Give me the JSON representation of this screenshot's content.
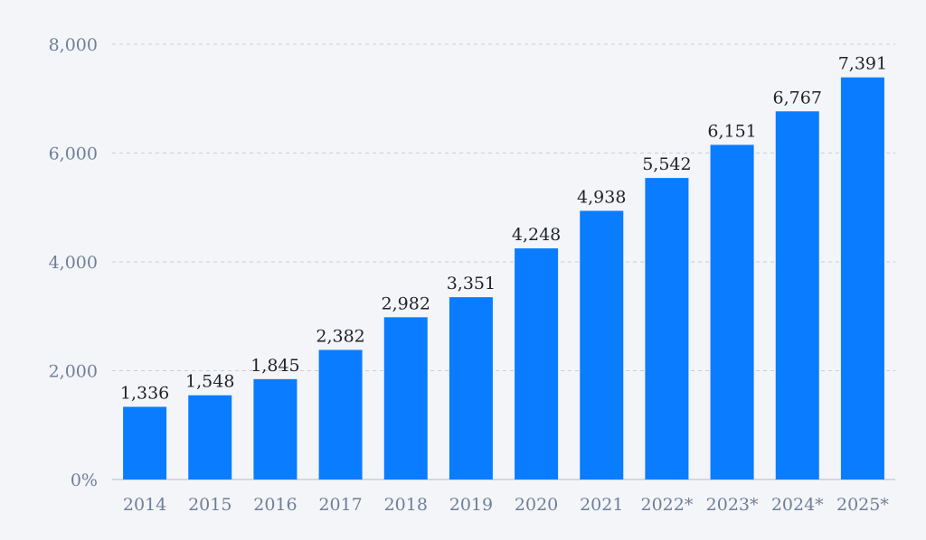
{
  "chart_data": {
    "type": "bar",
    "categories": [
      "2014",
      "2015",
      "2016",
      "2017",
      "2018",
      "2019",
      "2020",
      "2021",
      "2022*",
      "2023*",
      "2024*",
      "2025*"
    ],
    "values": [
      1336,
      1548,
      1845,
      2382,
      2982,
      3351,
      4248,
      4938,
      5542,
      6151,
      6767,
      7391
    ],
    "data_labels": [
      "1,336",
      "1,548",
      "1,845",
      "2,382",
      "2,982",
      "3,351",
      "4,248",
      "4,938",
      "5,542",
      "6,151",
      "6,767",
      "7,391"
    ],
    "yticks": [
      0,
      2000,
      4000,
      6000,
      8000
    ],
    "ytick_labels": [
      "0%",
      "2,000",
      "4,000",
      "6,000",
      "8,000"
    ],
    "ylim": [
      0,
      8000
    ],
    "grid": true,
    "legend": "none",
    "colors": {
      "bar": "#0a7cff",
      "grid": "#c9cfd9",
      "axis": "#c9cfd9",
      "tick_text": "#6f7f98",
      "label_text": "#1f2329",
      "background": "#f3f5f9"
    }
  }
}
